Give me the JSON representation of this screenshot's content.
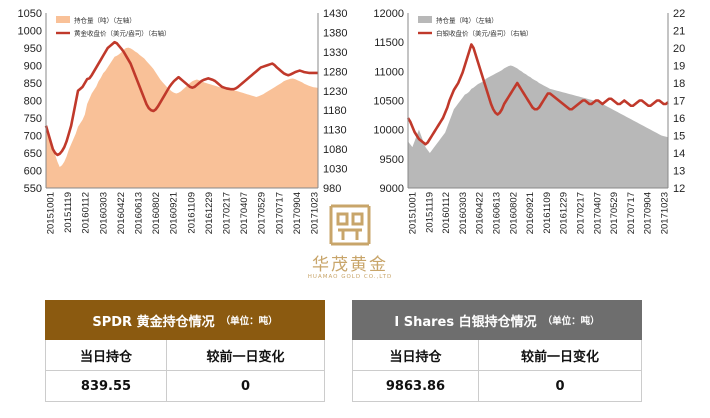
{
  "chart_data": [
    {
      "type": "area+line",
      "series": [
        {
          "name": "持仓量（吨）（左轴）",
          "kind": "area",
          "color": "#f9c198",
          "values": [
            735,
            710,
            690,
            665,
            645,
            625,
            610,
            615,
            625,
            640,
            660,
            675,
            690,
            705,
            725,
            735,
            745,
            760,
            790,
            805,
            820,
            830,
            840,
            855,
            865,
            878,
            885,
            895,
            905,
            915,
            925,
            928,
            932,
            938,
            945,
            950,
            951,
            949,
            945,
            940,
            936,
            930,
            925,
            920,
            912,
            905,
            898,
            890,
            880,
            870,
            860,
            852,
            845,
            838,
            832,
            826,
            822,
            820,
            822,
            826,
            832,
            838,
            844,
            850,
            855,
            858,
            860,
            858,
            855,
            852,
            850,
            848,
            846,
            844,
            842,
            840,
            838,
            836,
            835,
            834,
            833,
            832,
            830,
            828,
            826,
            824,
            822,
            820,
            818,
            816,
            814,
            812,
            810,
            812,
            815,
            818,
            822,
            826,
            830,
            834,
            838,
            842,
            846,
            850,
            855,
            858,
            860,
            862,
            863,
            861,
            858,
            855,
            852,
            848,
            845,
            842,
            840,
            838,
            837,
            836
          ]
        },
        {
          "name": "黄金收盘价（美元/盎司）（右轴）",
          "kind": "line",
          "color": "#c0392b",
          "values": [
            1140,
            1120,
            1100,
            1080,
            1070,
            1065,
            1068,
            1075,
            1085,
            1100,
            1120,
            1140,
            1170,
            1200,
            1230,
            1235,
            1240,
            1250,
            1260,
            1262,
            1270,
            1280,
            1290,
            1300,
            1310,
            1320,
            1330,
            1340,
            1345,
            1350,
            1355,
            1352,
            1345,
            1338,
            1330,
            1320,
            1310,
            1300,
            1285,
            1270,
            1255,
            1240,
            1225,
            1210,
            1195,
            1185,
            1180,
            1178,
            1182,
            1190,
            1200,
            1210,
            1220,
            1230,
            1240,
            1248,
            1255,
            1260,
            1265,
            1260,
            1255,
            1250,
            1245,
            1240,
            1238,
            1240,
            1245,
            1250,
            1255,
            1258,
            1260,
            1262,
            1260,
            1258,
            1255,
            1250,
            1245,
            1240,
            1238,
            1236,
            1235,
            1234,
            1234,
            1236,
            1240,
            1245,
            1250,
            1255,
            1260,
            1265,
            1270,
            1275,
            1280,
            1285,
            1290,
            1292,
            1294,
            1296,
            1298,
            1300,
            1296,
            1290,
            1285,
            1280,
            1275,
            1272,
            1270,
            1272,
            1275,
            1278,
            1280,
            1282,
            1280,
            1278,
            1277,
            1276,
            1276,
            1276,
            1276,
            1276
          ]
        }
      ],
      "x_ticks": [
        "20151001",
        "20151119",
        "20160112",
        "20160303",
        "20160422",
        "20160613",
        "20160802",
        "20160921",
        "20161109",
        "20161229",
        "20170217",
        "20170407",
        "20170529",
        "20170717",
        "20170904",
        "20171023"
      ],
      "y_left": {
        "min": 550,
        "max": 1050,
        "ticks": [
          550,
          600,
          650,
          700,
          750,
          800,
          850,
          900,
          950,
          1000,
          1050
        ]
      },
      "y_right": {
        "min": 980,
        "max": 1430,
        "ticks": [
          980,
          1030,
          1080,
          1130,
          1180,
          1230,
          1280,
          1330,
          1380,
          1430
        ]
      },
      "legend_position": "top-left"
    },
    {
      "type": "area+line",
      "series": [
        {
          "name": "持仓量（吨）（左轴）",
          "kind": "area",
          "color": "#b8b8b8",
          "values": [
            9800,
            9750,
            9700,
            9800,
            9900,
            10000,
            9900,
            9800,
            9700,
            9650,
            9600,
            9650,
            9700,
            9750,
            9800,
            9850,
            9900,
            9950,
            10050,
            10150,
            10250,
            10350,
            10400,
            10450,
            10500,
            10550,
            10600,
            10620,
            10650,
            10700,
            10720,
            10750,
            10780,
            10800,
            10820,
            10850,
            10880,
            10900,
            10920,
            10940,
            10960,
            10980,
            11000,
            11020,
            11050,
            11070,
            11090,
            11100,
            11090,
            11070,
            11050,
            11020,
            11000,
            10970,
            10950,
            10920,
            10900,
            10870,
            10850,
            10830,
            10800,
            10780,
            10760,
            10740,
            10720,
            10700,
            10690,
            10680,
            10670,
            10660,
            10650,
            10640,
            10630,
            10620,
            10610,
            10600,
            10590,
            10580,
            10570,
            10560,
            10550,
            10540,
            10530,
            10520,
            10510,
            10500,
            10490,
            10480,
            10460,
            10440,
            10420,
            10400,
            10380,
            10360,
            10340,
            10320,
            10300,
            10280,
            10260,
            10240,
            10220,
            10200,
            10180,
            10160,
            10140,
            10120,
            10100,
            10080,
            10060,
            10040,
            10020,
            10000,
            9980,
            9960,
            9940,
            9920,
            9900,
            9890,
            9880,
            9870
          ]
        },
        {
          "name": "白银收盘价（美元/盎司）（右轴）",
          "kind": "line",
          "color": "#c0392b",
          "values": [
            16.0,
            15.8,
            15.5,
            15.2,
            15.0,
            14.8,
            14.7,
            14.6,
            14.5,
            14.6,
            14.8,
            15.0,
            15.2,
            15.4,
            15.6,
            15.8,
            16.0,
            16.3,
            16.6,
            17.0,
            17.3,
            17.6,
            17.8,
            18.0,
            18.3,
            18.6,
            19.0,
            19.4,
            19.8,
            20.2,
            20.0,
            19.6,
            19.2,
            18.8,
            18.4,
            18.0,
            17.6,
            17.2,
            16.8,
            16.5,
            16.3,
            16.2,
            16.3,
            16.5,
            16.8,
            17.0,
            17.2,
            17.4,
            17.6,
            17.8,
            18.0,
            17.8,
            17.6,
            17.4,
            17.2,
            17.0,
            16.8,
            16.6,
            16.5,
            16.5,
            16.6,
            16.8,
            17.0,
            17.2,
            17.4,
            17.4,
            17.3,
            17.2,
            17.1,
            17.0,
            16.9,
            16.8,
            16.7,
            16.6,
            16.5,
            16.5,
            16.6,
            16.7,
            16.8,
            16.9,
            17.0,
            17.0,
            16.9,
            16.8,
            16.8,
            16.9,
            17.0,
            17.0,
            16.9,
            16.8,
            16.9,
            17.0,
            17.1,
            17.1,
            17.0,
            16.9,
            16.8,
            16.8,
            16.9,
            17.0,
            16.9,
            16.8,
            16.7,
            16.7,
            16.8,
            16.9,
            17.0,
            17.0,
            16.9,
            16.8,
            16.7,
            16.7,
            16.8,
            16.9,
            17.0,
            17.0,
            16.9,
            16.8,
            16.8,
            16.9
          ]
        }
      ],
      "x_ticks": [
        "20151001",
        "20151119",
        "20160112",
        "20160303",
        "20160422",
        "20160613",
        "20160802",
        "20160921",
        "20161109",
        "20161229",
        "20170217",
        "20170407",
        "20170529",
        "20170717",
        "20170904",
        "20171023"
      ],
      "y_left": {
        "min": 9000,
        "max": 12000,
        "ticks": [
          9000,
          9500,
          10000,
          10500,
          11000,
          11500,
          12000
        ]
      },
      "y_right": {
        "min": 12,
        "max": 22,
        "ticks": [
          12,
          13,
          14,
          15,
          16,
          17,
          18,
          19,
          20,
          21,
          22
        ]
      },
      "legend_position": "top-left"
    }
  ],
  "logo": {
    "name_cn": "华茂黄金",
    "name_en": "HUAMAO GOLD CO.,LTD",
    "color": "#c8a56a"
  },
  "gold_table": {
    "title": "SPDR 黄金持仓情况",
    "unit": "（单位：吨）",
    "header_color": "#8b5a10",
    "col1_label": "当日持仓",
    "col2_label": "较前一日变化",
    "holding": "839.55",
    "change": "0"
  },
  "silver_table": {
    "title": "I Shares 白银持仓情况",
    "unit": "（单位：吨）",
    "header_color": "#6e6e6e",
    "col1_label": "当日持仓",
    "col2_label": "较前一日变化",
    "holding": "9863.86",
    "change": "0"
  }
}
